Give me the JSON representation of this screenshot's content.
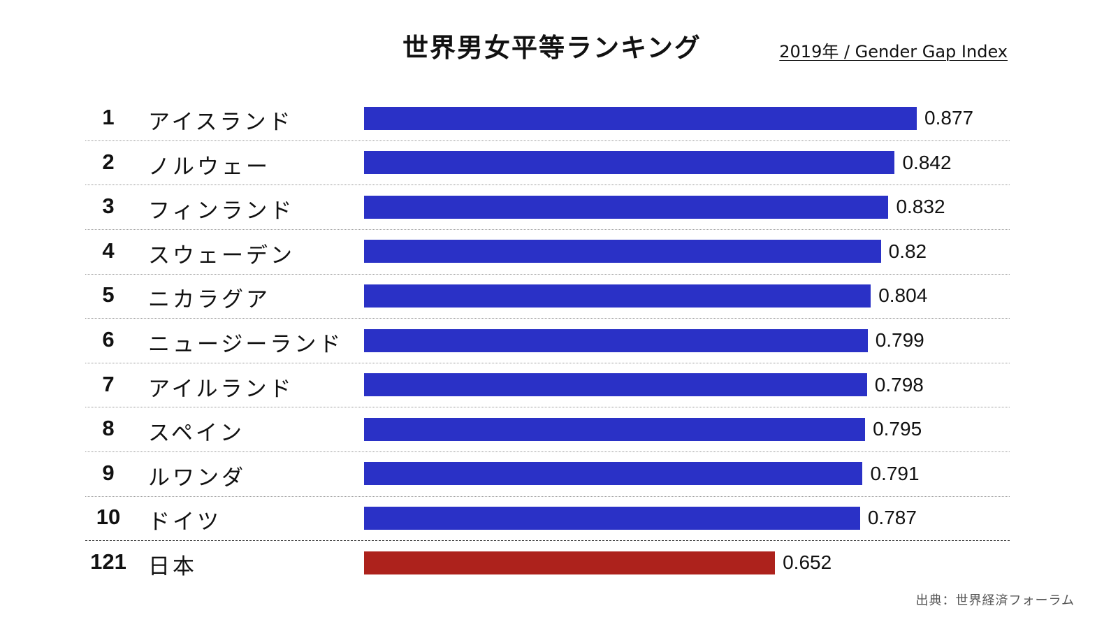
{
  "chart_data": {
    "type": "bar",
    "orientation": "horizontal",
    "title": "世界男女平等ランキング",
    "subtitle": "2019年 / Gender Gap Index",
    "source": "出典：世界経済フォーラム",
    "xlim": [
      0,
      1
    ],
    "grid": false,
    "colors": {
      "default": "#2a31c6",
      "highlight": "#ad221c"
    },
    "rows": [
      {
        "rank": "1",
        "country": "アイスランド",
        "value": 0.877,
        "value_label": "0.877",
        "highlight": false
      },
      {
        "rank": "2",
        "country": "ノルウェー",
        "value": 0.842,
        "value_label": "0.842",
        "highlight": false
      },
      {
        "rank": "3",
        "country": "フィンランド",
        "value": 0.832,
        "value_label": "0.832",
        "highlight": false
      },
      {
        "rank": "4",
        "country": "スウェーデン",
        "value": 0.82,
        "value_label": "0.82",
        "highlight": false
      },
      {
        "rank": "5",
        "country": "ニカラグア",
        "value": 0.804,
        "value_label": "0.804",
        "highlight": false
      },
      {
        "rank": "6",
        "country": "ニュージーランド",
        "value": 0.799,
        "value_label": "0.799",
        "highlight": false
      },
      {
        "rank": "7",
        "country": "アイルランド",
        "value": 0.798,
        "value_label": "0.798",
        "highlight": false
      },
      {
        "rank": "8",
        "country": "スペイン",
        "value": 0.795,
        "value_label": "0.795",
        "highlight": false
      },
      {
        "rank": "9",
        "country": "ルワンダ",
        "value": 0.791,
        "value_label": "0.791",
        "highlight": false
      },
      {
        "rank": "10",
        "country": "ドイツ",
        "value": 0.787,
        "value_label": "0.787",
        "highlight": false
      },
      {
        "rank": "121",
        "country": "日本",
        "value": 0.652,
        "value_label": "0.652",
        "highlight": true
      }
    ]
  }
}
